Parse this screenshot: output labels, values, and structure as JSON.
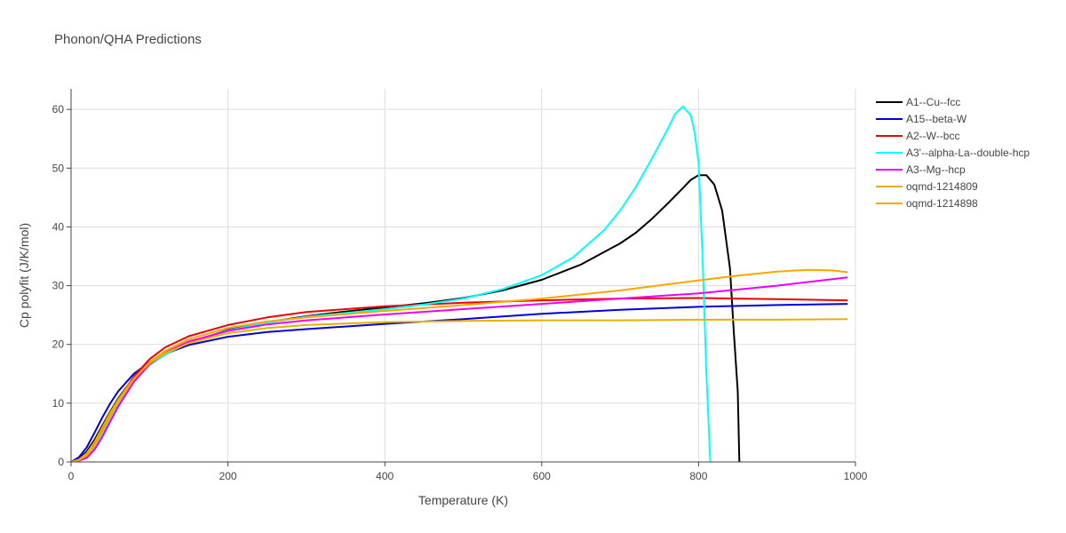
{
  "chart_data": {
    "type": "line",
    "title": "Phonon/QHA Predictions",
    "xlabel": "Temperature (K)",
    "ylabel": "Cp polyfit (J/K/mol)",
    "xlim": [
      0,
      1000
    ],
    "ylim": [
      0,
      63.5
    ],
    "xticks": [
      0,
      200,
      400,
      600,
      800,
      1000
    ],
    "yticks": [
      0,
      10,
      20,
      30,
      40,
      50,
      60
    ],
    "grid": true,
    "legend_position": "right",
    "series": [
      {
        "name": "A1--Cu--fcc",
        "color": "#000000",
        "x": [
          0,
          10,
          20,
          30,
          40,
          50,
          60,
          70,
          80,
          100,
          120,
          150,
          200,
          250,
          300,
          350,
          400,
          450,
          500,
          550,
          600,
          650,
          700,
          720,
          740,
          760,
          780,
          790,
          800,
          810,
          820,
          830,
          840,
          845,
          850,
          852
        ],
        "y": [
          0,
          0.5,
          1.8,
          3.8,
          6.2,
          8.6,
          10.8,
          12.6,
          14.1,
          16.6,
          18.3,
          20.2,
          22.5,
          23.8,
          24.8,
          25.6,
          26.3,
          27.0,
          27.9,
          29.2,
          31.0,
          33.6,
          37.2,
          39.0,
          41.3,
          43.9,
          46.6,
          48.0,
          48.8,
          48.8,
          47.2,
          42.8,
          33.0,
          22.0,
          12.0,
          0
        ]
      },
      {
        "name": "A15--beta-W",
        "color": "#0000dd",
        "x": [
          0,
          10,
          20,
          30,
          40,
          50,
          60,
          80,
          100,
          120,
          150,
          200,
          250,
          300,
          400,
          500,
          600,
          700,
          800,
          900,
          990
        ],
        "y": [
          0,
          0.8,
          2.5,
          5.0,
          7.6,
          10.0,
          12.0,
          15.0,
          17.0,
          18.4,
          19.9,
          21.3,
          22.1,
          22.6,
          23.5,
          24.3,
          25.2,
          25.9,
          26.4,
          26.7,
          26.9
        ]
      },
      {
        "name": "A2--W--bcc",
        "color": "#ee0000",
        "x": [
          0,
          10,
          20,
          30,
          40,
          50,
          60,
          80,
          100,
          120,
          150,
          200,
          250,
          300,
          400,
          500,
          600,
          700,
          800,
          900,
          990
        ],
        "y": [
          0,
          0.3,
          1.3,
          3.2,
          5.7,
          8.2,
          10.5,
          14.5,
          17.5,
          19.5,
          21.4,
          23.3,
          24.6,
          25.5,
          26.5,
          27.1,
          27.5,
          27.8,
          27.9,
          27.7,
          27.5
        ]
      },
      {
        "name": "A3'--alpha-La--double-hcp",
        "color": "#00ffff",
        "x": [
          0,
          10,
          20,
          30,
          40,
          50,
          60,
          80,
          100,
          120,
          150,
          200,
          250,
          300,
          400,
          450,
          500,
          550,
          600,
          640,
          680,
          700,
          720,
          740,
          760,
          770,
          780,
          790,
          795,
          800,
          805,
          810,
          815
        ],
        "y": [
          0,
          0.2,
          0.9,
          2.5,
          4.8,
          7.3,
          9.8,
          13.8,
          16.5,
          18.3,
          20.3,
          22.4,
          23.7,
          24.7,
          26.0,
          26.8,
          27.8,
          29.4,
          31.8,
          34.8,
          39.5,
          42.8,
          46.8,
          51.5,
          56.5,
          59.2,
          60.5,
          59.0,
          56.0,
          51.0,
          35.0,
          15.0,
          0
        ]
      },
      {
        "name": "A3--Mg--hcp",
        "color": "#ee00ee",
        "x": [
          0,
          10,
          20,
          30,
          40,
          50,
          60,
          80,
          100,
          120,
          150,
          200,
          250,
          300,
          400,
          500,
          600,
          700,
          800,
          900,
          990
        ],
        "y": [
          0,
          0.2,
          0.7,
          2.1,
          4.3,
          6.9,
          9.4,
          13.6,
          16.6,
          18.6,
          20.5,
          22.3,
          23.4,
          24.1,
          25.1,
          26.0,
          26.9,
          27.8,
          28.7,
          30.0,
          31.4
        ]
      },
      {
        "name": "oqmd-1214809",
        "color": "#e6b000",
        "x": [
          0,
          10,
          20,
          30,
          40,
          50,
          60,
          80,
          100,
          120,
          150,
          200,
          250,
          300,
          400,
          500,
          600,
          700,
          800,
          900,
          990
        ],
        "y": [
          0,
          0.4,
          1.5,
          3.4,
          5.9,
          8.4,
          10.6,
          14.2,
          16.8,
          18.5,
          20.2,
          21.9,
          22.8,
          23.3,
          23.8,
          24.0,
          24.1,
          24.1,
          24.2,
          24.2,
          24.3
        ]
      },
      {
        "name": "oqmd-1214898",
        "color": "#ffa500",
        "x": [
          0,
          10,
          20,
          30,
          40,
          50,
          60,
          80,
          100,
          120,
          150,
          200,
          250,
          300,
          400,
          500,
          600,
          700,
          800,
          850,
          900,
          940,
          970,
          990
        ],
        "y": [
          0,
          0.3,
          1.1,
          2.8,
          5.2,
          7.8,
          10.2,
          14.1,
          17.0,
          18.9,
          20.9,
          22.8,
          23.9,
          24.6,
          25.7,
          26.7,
          27.8,
          29.2,
          30.9,
          31.7,
          32.4,
          32.7,
          32.6,
          32.3
        ]
      }
    ]
  }
}
